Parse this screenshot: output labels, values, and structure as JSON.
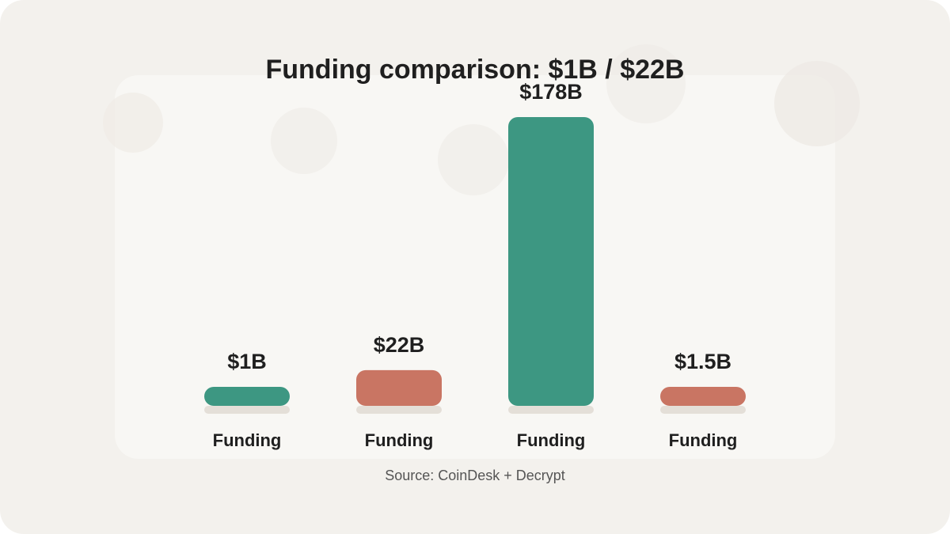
{
  "chart_data": {
    "type": "bar",
    "title": "Funding comparison: $1B / $22B",
    "categories": [
      "Funding",
      "Funding",
      "Funding",
      "Funding"
    ],
    "values": [
      1,
      22,
      178,
      1.5
    ],
    "value_labels": [
      "$1B",
      "$22B",
      "$178B",
      "$1.5B"
    ],
    "colors": [
      "#3d9782",
      "#c97563",
      "#3d9782",
      "#c97563"
    ],
    "source": "Source: CoinDesk + Decrypt"
  }
}
